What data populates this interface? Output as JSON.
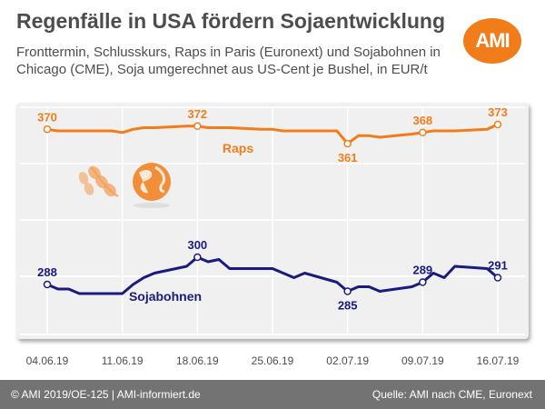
{
  "header": {
    "title": "Regenfälle in USA fördern Sojaentwicklung",
    "subtitle": "Fronttermin, Schlusskurs, Raps in Paris (Euronext) und Sojabohnen in Chicago (CME), Soja umgerechnet aus US-Cent je Bushel, in EUR/t",
    "logo_text": "AMI"
  },
  "footer": {
    "left": "© AMI 2019/OE-125 | AMI-informiert.de",
    "right": "Quelle: AMI nach CME, Euronext"
  },
  "colors": {
    "raps": "#f07d1a",
    "soja": "#1a1a80",
    "grid": "#ffffff",
    "frame": "#f0f0f0",
    "footer": "#737373"
  },
  "chart_data": {
    "type": "line",
    "title": "Regenfälle in USA fördern Sojaentwicklung",
    "x_ticks": [
      "04.06.19",
      "11.06.19",
      "18.06.19",
      "25.06.19",
      "02.07.19",
      "09.07.19",
      "16.07.19"
    ],
    "x_range": [
      "04.06.19",
      "16.07.19"
    ],
    "grid": true,
    "series": [
      {
        "name": "Raps",
        "color": "#f07d1a",
        "x": [
          "04.06.19",
          "05.06.19",
          "06.06.19",
          "07.06.19",
          "10.06.19",
          "11.06.19",
          "12.06.19",
          "13.06.19",
          "14.06.19",
          "17.06.19",
          "18.06.19",
          "19.06.19",
          "20.06.19",
          "21.06.19",
          "24.06.19",
          "25.06.19",
          "26.06.19",
          "27.06.19",
          "28.06.19",
          "01.07.19",
          "02.07.19",
          "03.07.19",
          "04.07.19",
          "05.07.19",
          "08.07.19",
          "09.07.19",
          "10.07.19",
          "11.07.19",
          "12.07.19",
          "15.07.19",
          "16.07.19"
        ],
        "values": [
          370,
          369,
          369,
          369,
          369,
          368,
          370,
          371,
          371,
          372,
          372,
          371,
          371,
          371,
          370,
          370,
          369,
          369,
          369,
          369,
          361,
          366,
          366,
          365,
          367,
          368,
          369,
          369,
          369,
          370,
          373
        ],
        "labels": [
          {
            "x": "04.06.19",
            "value": 370,
            "text": "370"
          },
          {
            "x": "18.06.19",
            "value": 372,
            "text": "372"
          },
          {
            "x": "02.07.19",
            "value": 361,
            "text": "361"
          },
          {
            "x": "09.07.19",
            "value": 368,
            "text": "368"
          },
          {
            "x": "16.07.19",
            "value": 373,
            "text": "373"
          }
        ]
      },
      {
        "name": "Sojabohnen",
        "color": "#1a1a80",
        "x": [
          "04.06.19",
          "05.06.19",
          "06.06.19",
          "07.06.19",
          "10.06.19",
          "11.06.19",
          "12.06.19",
          "13.06.19",
          "14.06.19",
          "17.06.19",
          "18.06.19",
          "19.06.19",
          "20.06.19",
          "21.06.19",
          "24.06.19",
          "25.06.19",
          "26.06.19",
          "27.06.19",
          "28.06.19",
          "01.07.19",
          "02.07.19",
          "03.07.19",
          "04.07.19",
          "05.07.19",
          "08.07.19",
          "09.07.19",
          "10.07.19",
          "11.07.19",
          "12.07.19",
          "15.07.19",
          "16.07.19"
        ],
        "values": [
          288,
          286,
          286,
          284,
          284,
          284,
          288,
          291,
          293,
          296,
          300,
          298,
          299,
          295,
          295,
          295,
          293,
          291,
          293,
          289,
          285,
          287,
          287,
          285,
          287,
          289,
          293,
          291,
          296,
          295,
          291
        ],
        "labels": [
          {
            "x": "04.06.19",
            "value": 288,
            "text": "288"
          },
          {
            "x": "18.06.19",
            "value": 300,
            "text": "300"
          },
          {
            "x": "02.07.19",
            "value": 285,
            "text": "285"
          },
          {
            "x": "09.07.19",
            "value": 289,
            "text": "289"
          },
          {
            "x": "16.07.19",
            "value": 291,
            "text": "291"
          }
        ]
      }
    ]
  }
}
